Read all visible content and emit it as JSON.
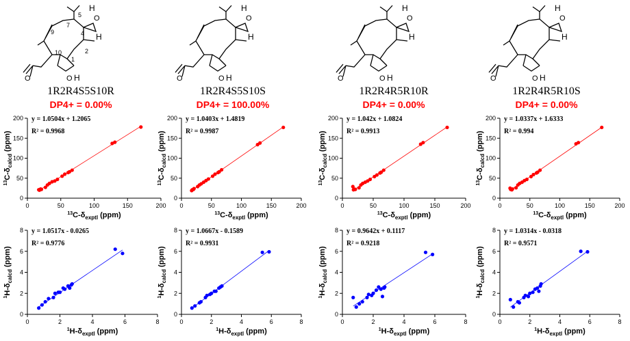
{
  "panels": [
    {
      "config": "1R2R4S5S10R",
      "dp4": "DP4+ = 0.00%",
      "labels": {
        "5": "5",
        "7": "7",
        "9": "9",
        "4": "4",
        "10": "10",
        "1": "1",
        "2": "2"
      }
    },
    {
      "config": "1R2R4S5S10S",
      "dp4": "DP4+ = 100.00%"
    },
    {
      "config": "1R2R4R5R10R",
      "dp4": "DP4+ = 0.00%"
    },
    {
      "config": "1R2R4R5R10S",
      "dp4": "DP4+ = 0.00%"
    }
  ],
  "structure_atoms": {
    "H": "H",
    "O": "O"
  },
  "colors": {
    "carbon": "#ff0000",
    "proton": "#0000ff",
    "dp4": "#ff0000"
  },
  "chart_data": [
    {
      "type": "scatter",
      "nucleus": "13C",
      "equation": "y = 1.0504x + 1.2065",
      "r2": "R² = 0.9968",
      "xlabel": "13C-δexptl (ppm)",
      "ylabel": "13C-δcalcd (ppm)",
      "xlim": [
        0,
        200
      ],
      "ylim": [
        0,
        200
      ],
      "xticks": [
        "0",
        "50",
        "100",
        "150",
        "200"
      ],
      "yticks": [
        "0",
        "50",
        "100",
        "150",
        "200"
      ],
      "x": [
        17,
        18,
        19,
        20,
        21,
        27,
        30,
        33,
        37,
        41,
        45,
        52,
        56,
        61,
        63,
        67,
        127,
        131,
        170
      ],
      "y": [
        21,
        20,
        22,
        23,
        22,
        27,
        33,
        37,
        41,
        43,
        47,
        55,
        60,
        64,
        66,
        70,
        137,
        140,
        178
      ]
    },
    {
      "type": "scatter",
      "nucleus": "13C",
      "equation": "y = 1.0403x + 1.4819",
      "r2": "R² = 0.9987",
      "xlabel": "13C-δexptl (ppm)",
      "ylabel": "13C-δcalcd (ppm)",
      "xlim": [
        0,
        200
      ],
      "ylim": [
        0,
        200
      ],
      "xticks": [
        "0",
        "50",
        "100",
        "150",
        "200"
      ],
      "yticks": [
        "0",
        "50",
        "100",
        "150",
        "200"
      ],
      "x": [
        17,
        18,
        20,
        21,
        27,
        30,
        33,
        37,
        41,
        45,
        52,
        56,
        61,
        63,
        67,
        127,
        131,
        170
      ],
      "y": [
        19,
        21,
        22,
        24,
        29,
        33,
        36,
        40,
        44,
        48,
        55,
        60,
        64,
        66,
        71,
        134,
        138,
        177
      ]
    },
    {
      "type": "scatter",
      "nucleus": "13C",
      "equation": "y = 1.042x + 1.0824",
      "r2": "R² = 0.9913",
      "xlabel": "13C-δexptl (ppm)",
      "ylabel": "13C-δcalcd (ppm)",
      "xlim": [
        0,
        200
      ],
      "ylim": [
        0,
        200
      ],
      "xticks": [
        "0",
        "50",
        "100",
        "150",
        "200"
      ],
      "yticks": [
        "0",
        "50",
        "100",
        "150",
        "200"
      ],
      "x": [
        17,
        18,
        19,
        21,
        27,
        30,
        33,
        37,
        41,
        45,
        52,
        56,
        61,
        63,
        67,
        127,
        131,
        170
      ],
      "y": [
        29,
        21,
        23,
        22,
        26,
        33,
        37,
        40,
        43,
        47,
        54,
        58,
        63,
        65,
        70,
        135,
        139,
        177
      ]
    },
    {
      "type": "scatter",
      "nucleus": "13C",
      "equation": "y = 1.0337x + 1.6333",
      "r2": "R² = 0.994",
      "xlabel": "13C-δexptl (ppm)",
      "ylabel": "13C-δcalcd (ppm)",
      "xlim": [
        0,
        200
      ],
      "ylim": [
        0,
        200
      ],
      "xticks": [
        "0",
        "50",
        "100",
        "150",
        "200"
      ],
      "yticks": [
        "0",
        "50",
        "100",
        "150",
        "200"
      ],
      "x": [
        17,
        18,
        20,
        21,
        27,
        30,
        33,
        37,
        41,
        45,
        52,
        56,
        61,
        63,
        67,
        127,
        131,
        170
      ],
      "y": [
        25,
        22,
        21,
        23,
        26,
        33,
        37,
        40,
        44,
        47,
        54,
        59,
        63,
        65,
        70,
        136,
        139,
        177
      ]
    },
    {
      "type": "scatter",
      "nucleus": "1H",
      "equation": "y = 1.0517x - 0.0265",
      "r2": "R² = 0.9776",
      "xlabel": "1H-δexptl (ppm)",
      "ylabel": "1H-δcalcd (ppm)",
      "xlim": [
        0,
        8
      ],
      "ylim": [
        0,
        8
      ],
      "xticks": [
        "0",
        "2",
        "4",
        "6",
        "8"
      ],
      "yticks": [
        "0",
        "2",
        "4",
        "6",
        "8"
      ],
      "x": [
        0.7,
        0.9,
        1.1,
        1.3,
        1.6,
        1.7,
        1.9,
        2.0,
        2.2,
        2.3,
        2.5,
        2.6,
        2.7,
        2.75,
        5.4,
        5.85
      ],
      "y": [
        0.6,
        0.9,
        1.2,
        1.5,
        1.6,
        2.0,
        2.1,
        2.1,
        2.5,
        2.4,
        2.7,
        2.5,
        2.8,
        2.9,
        6.2,
        5.8
      ]
    },
    {
      "type": "scatter",
      "nucleus": "1H",
      "equation": "y = 1.0667x - 0.1589",
      "r2": "R² = 0.9931",
      "xlabel": "1H-δexptl (ppm)",
      "ylabel": "1H-δcalcd (ppm)",
      "xlim": [
        0,
        8
      ],
      "ylim": [
        0,
        8
      ],
      "xticks": [
        "0",
        "2",
        "4",
        "6",
        "8"
      ],
      "yticks": [
        "0",
        "2",
        "4",
        "6",
        "8"
      ],
      "x": [
        0.7,
        0.9,
        1.2,
        1.3,
        1.6,
        1.7,
        1.9,
        2.0,
        2.2,
        2.3,
        2.5,
        2.6,
        2.7,
        5.4,
        5.85
      ],
      "y": [
        0.6,
        0.8,
        1.1,
        1.2,
        1.6,
        1.8,
        1.9,
        2.0,
        2.2,
        2.2,
        2.5,
        2.6,
        2.7,
        5.9,
        5.95
      ]
    },
    {
      "type": "scatter",
      "nucleus": "1H",
      "equation": "y = 0.9642x + 0.1117",
      "r2": "R² = 0.9218",
      "xlabel": "1H-δexptl (ppm)",
      "ylabel": "1H-δcalcd (ppm)",
      "xlim": [
        0,
        8
      ],
      "ylim": [
        0,
        8
      ],
      "xticks": [
        "0",
        "2",
        "4",
        "6",
        "8"
      ],
      "yticks": [
        "0",
        "2",
        "4",
        "6",
        "8"
      ],
      "x": [
        0.7,
        0.9,
        1.1,
        1.3,
        1.6,
        1.7,
        1.9,
        2.0,
        2.2,
        2.35,
        2.5,
        2.6,
        2.7,
        2.75,
        5.4,
        5.85
      ],
      "y": [
        1.6,
        0.7,
        1.0,
        1.2,
        1.6,
        1.9,
        1.8,
        2.0,
        2.3,
        2.6,
        2.4,
        1.7,
        2.5,
        2.6,
        5.9,
        5.7
      ]
    },
    {
      "type": "scatter",
      "nucleus": "1H",
      "equation": "y = 1.0314x - 0.0318",
      "r2": "R² = 0.9571",
      "xlabel": "1H-δexptl (ppm)",
      "ylabel": "1H-δcalcd (ppm)",
      "xlim": [
        0,
        8
      ],
      "ylim": [
        0,
        8
      ],
      "xticks": [
        "0",
        "2",
        "4",
        "6",
        "8"
      ],
      "yticks": [
        "0",
        "2",
        "4",
        "6",
        "8"
      ],
      "x": [
        0.7,
        0.9,
        1.2,
        1.3,
        1.6,
        1.7,
        1.9,
        2.0,
        2.2,
        2.35,
        2.5,
        2.6,
        2.7,
        2.75,
        5.4,
        5.85
      ],
      "y": [
        1.4,
        0.7,
        1.2,
        1.1,
        1.6,
        1.8,
        1.7,
        2.0,
        2.1,
        2.4,
        2.5,
        2.2,
        2.7,
        2.9,
        6.0,
        5.95
      ]
    }
  ]
}
